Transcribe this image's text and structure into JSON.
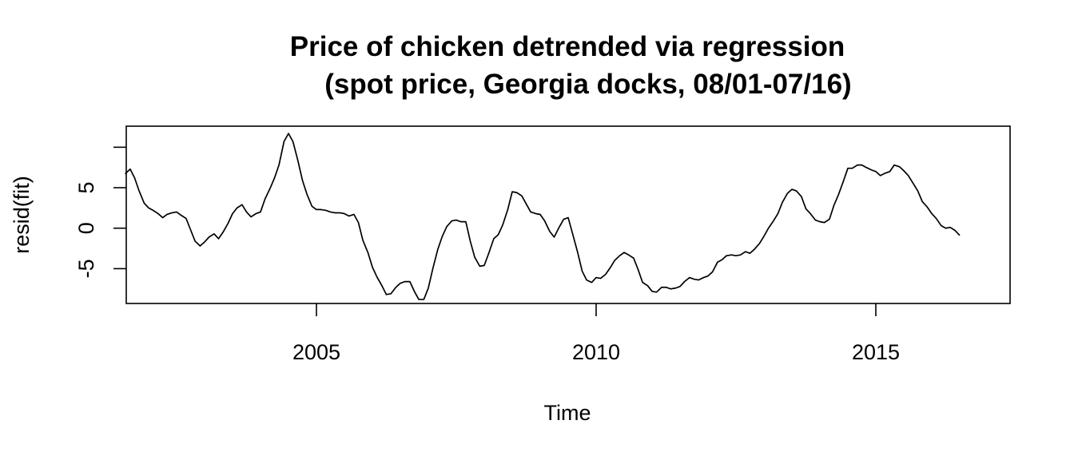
{
  "chart_data": {
    "type": "line",
    "title": "Price of chicken detrended via regression",
    "subtitle": "(spot price, Georgia docks, 08/01-07/16)",
    "xlabel": "Time",
    "ylabel": "resid(fit)",
    "xlim": [
      2001.6,
      2017.4
    ],
    "ylim": [
      -9.3,
      12.6
    ],
    "x_ticks": [
      2005,
      2010,
      2015
    ],
    "x_tick_labels": [
      "2005",
      "2010",
      "2015"
    ],
    "y_ticks": [
      -5,
      0,
      5,
      10
    ],
    "y_tick_labels": [
      "-5",
      "0",
      "5",
      ""
    ],
    "grid": false,
    "legend": "none",
    "line_color": "#000000",
    "series": [
      {
        "x": [
          2001.58,
          2001.67,
          2001.75,
          2001.83,
          2001.92,
          2002.0,
          2002.08,
          2002.17,
          2002.25,
          2002.33,
          2002.42,
          2002.5,
          2002.58,
          2002.67,
          2002.75,
          2002.83,
          2002.92,
          2003.0,
          2003.08,
          2003.17,
          2003.25,
          2003.33,
          2003.42,
          2003.5,
          2003.58,
          2003.67,
          2003.75,
          2003.83,
          2003.92,
          2004.0,
          2004.08,
          2004.17,
          2004.25,
          2004.33,
          2004.42,
          2004.5,
          2004.58,
          2004.67,
          2004.75,
          2004.83,
          2004.92,
          2005.0,
          2005.08,
          2005.17,
          2005.25,
          2005.33,
          2005.42,
          2005.5,
          2005.58,
          2005.67,
          2005.75,
          2005.83,
          2005.92,
          2006.0,
          2006.08,
          2006.17,
          2006.25,
          2006.33,
          2006.42,
          2006.5,
          2006.58,
          2006.67,
          2006.75,
          2006.83,
          2006.92,
          2007.0,
          2007.08,
          2007.17,
          2007.25,
          2007.33,
          2007.42,
          2007.5,
          2007.58,
          2007.67,
          2007.75,
          2007.83,
          2007.92,
          2008.0,
          2008.08,
          2008.17,
          2008.25,
          2008.33,
          2008.42,
          2008.5,
          2008.58,
          2008.67,
          2008.75,
          2008.83,
          2008.92,
          2009.0,
          2009.08,
          2009.17,
          2009.25,
          2009.33,
          2009.42,
          2009.5,
          2009.58,
          2009.67,
          2009.75,
          2009.83,
          2009.92,
          2010.0,
          2010.08,
          2010.17,
          2010.25,
          2010.33,
          2010.42,
          2010.5,
          2010.58,
          2010.67,
          2010.75,
          2010.83,
          2010.92,
          2011.0,
          2011.08,
          2011.17,
          2011.25,
          2011.33,
          2011.42,
          2011.5,
          2011.58,
          2011.67,
          2011.75,
          2011.83,
          2011.92,
          2012.0,
          2012.08,
          2012.17,
          2012.25,
          2012.33,
          2012.42,
          2012.5,
          2012.58,
          2012.67,
          2012.75,
          2012.83,
          2012.92,
          2013.0,
          2013.08,
          2013.17,
          2013.25,
          2013.33,
          2013.42,
          2013.5,
          2013.58,
          2013.67,
          2013.75,
          2013.83,
          2013.92,
          2014.0,
          2014.08,
          2014.17,
          2014.25,
          2014.33,
          2014.42,
          2014.5,
          2014.58,
          2014.67,
          2014.75,
          2014.83,
          2014.92,
          2015.0,
          2015.08,
          2015.17,
          2015.25,
          2015.33,
          2015.42,
          2015.5,
          2015.58,
          2015.67,
          2015.75,
          2015.83,
          2015.92,
          2016.0,
          2016.08,
          2016.17,
          2016.25,
          2016.33,
          2016.42,
          2016.5
        ],
        "values": [
          6.7,
          7.3,
          6.2,
          4.6,
          3.1,
          2.5,
          2.2,
          1.8,
          1.3,
          1.7,
          1.9,
          2.0,
          1.6,
          1.2,
          -0.2,
          -1.6,
          -2.2,
          -1.7,
          -1.1,
          -0.7,
          -1.3,
          -0.5,
          0.6,
          1.8,
          2.5,
          2.9,
          2.0,
          1.4,
          1.8,
          2.0,
          3.6,
          4.9,
          6.2,
          7.8,
          10.7,
          11.7,
          10.7,
          8.3,
          5.9,
          4.2,
          2.7,
          2.3,
          2.3,
          2.2,
          2.0,
          1.9,
          1.9,
          1.8,
          1.5,
          1.7,
          0.7,
          -1.5,
          -3.0,
          -4.8,
          -6.0,
          -7.1,
          -8.2,
          -8.1,
          -7.3,
          -6.8,
          -6.6,
          -6.6,
          -7.8,
          -8.8,
          -8.8,
          -7.4,
          -5.0,
          -2.6,
          -1.0,
          0.2,
          0.9,
          1.0,
          0.8,
          0.8,
          -1.6,
          -3.6,
          -4.7,
          -4.6,
          -3.1,
          -1.3,
          -0.8,
          0.4,
          2.3,
          4.5,
          4.4,
          4.0,
          3.0,
          2.0,
          1.8,
          1.7,
          0.9,
          -0.4,
          -1.1,
          0.0,
          1.1,
          1.3,
          -0.7,
          -3.0,
          -5.3,
          -6.4,
          -6.7,
          -6.1,
          -6.2,
          -5.7,
          -4.9,
          -4.0,
          -3.4,
          -3.0,
          -3.3,
          -3.7,
          -5.1,
          -6.7,
          -7.1,
          -7.8,
          -7.9,
          -7.3,
          -7.3,
          -7.5,
          -7.4,
          -7.2,
          -6.6,
          -6.1,
          -6.3,
          -6.4,
          -6.1,
          -5.9,
          -5.4,
          -4.2,
          -3.9,
          -3.4,
          -3.3,
          -3.4,
          -3.3,
          -2.9,
          -3.1,
          -2.6,
          -1.9,
          -1.0,
          0.0,
          0.9,
          1.8,
          3.2,
          4.3,
          4.8,
          4.6,
          3.9,
          2.4,
          1.8,
          1.0,
          0.8,
          0.7,
          1.1,
          2.8,
          4.1,
          5.8,
          7.4,
          7.4,
          7.8,
          7.8,
          7.5,
          7.2,
          7.0,
          6.5,
          6.8,
          7.0,
          7.8,
          7.6,
          7.1,
          6.5,
          5.5,
          4.6,
          3.3,
          2.6,
          1.8,
          1.2,
          0.3,
          0.0,
          0.1,
          -0.3,
          -0.9
        ]
      }
    ]
  }
}
